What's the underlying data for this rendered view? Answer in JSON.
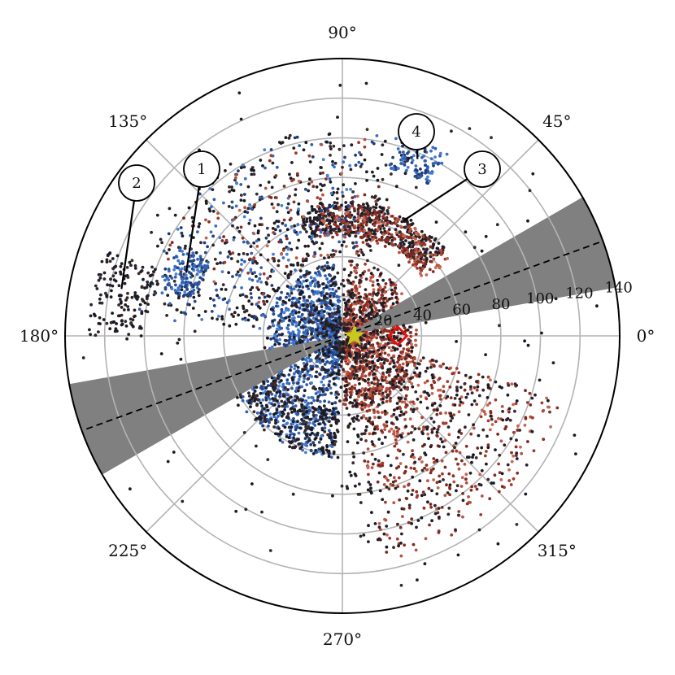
{
  "chart_data": {
    "type": "scatter",
    "title": "",
    "projection": "polar",
    "angle_tick_labels": [
      "0°",
      "45°",
      "90°",
      "135°",
      "180°",
      "225°",
      "270°",
      "315°"
    ],
    "angle_ticks_deg": [
      0,
      45,
      90,
      135,
      180,
      225,
      270,
      315
    ],
    "radial_tick_labels": [
      "20",
      "40",
      "60",
      "80",
      "100",
      "120",
      "140"
    ],
    "radial_ticks": [
      20,
      40,
      60,
      80,
      100,
      120,
      140
    ],
    "rlim": [
      0,
      140
    ],
    "grid": true,
    "shaded_wedges_deg": [
      [
        10,
        30
      ],
      [
        190,
        210
      ]
    ],
    "dashed_line_deg": [
      20,
      200
    ],
    "colors": {
      "blue": "#2f5fb0",
      "red": "#a23b2c",
      "dark": "#1d1d24",
      "wedge": "#808080",
      "star": "#c8c81e",
      "diamond": "#e01010"
    },
    "markers": [
      {
        "kind": "star",
        "angle_deg": 0,
        "r": 6
      },
      {
        "kind": "diamond",
        "angle_deg": 0,
        "r": 28
      }
    ],
    "structures": [
      {
        "label": "1",
        "angle_deg": 158,
        "r": 85,
        "color": "blue"
      },
      {
        "label": "2",
        "angle_deg": 168,
        "r": 114,
        "color": "dark"
      },
      {
        "label": "3",
        "angle_deg": 62,
        "r": 66,
        "color": "dark"
      },
      {
        "label": "4",
        "angle_deg": 67,
        "r": 97,
        "color": "blue"
      }
    ],
    "clusters": [
      {
        "name": "core-blue",
        "color": "blue",
        "angle_range": [
          95,
          265
        ],
        "r_range": [
          3,
          38
        ],
        "count": 900
      },
      {
        "name": "core-red",
        "color": "red",
        "angle_range": [
          -90,
          85
        ],
        "r_range": [
          3,
          38
        ],
        "count": 900
      },
      {
        "name": "core-dark",
        "color": "dark",
        "angle_range": [
          0,
          360
        ],
        "r_range": [
          3,
          38
        ],
        "count": 600
      },
      {
        "name": "ring-dark",
        "color": "dark",
        "angle_range": [
          40,
          110
        ],
        "r_range": [
          52,
          68
        ],
        "count": 420
      },
      {
        "name": "ring-red",
        "color": "red",
        "angle_range": [
          35,
          100
        ],
        "r_range": [
          50,
          66
        ],
        "count": 260
      },
      {
        "name": "arc-blue",
        "color": "blue",
        "angle_range": [
          200,
          265
        ],
        "r_range": [
          38,
          62
        ],
        "count": 320
      },
      {
        "name": "arc-dark",
        "color": "dark",
        "angle_range": [
          200,
          268
        ],
        "r_range": [
          38,
          62
        ],
        "count": 300
      },
      {
        "name": "lower-red",
        "color": "red",
        "angle_range": [
          280,
          345
        ],
        "r_range": [
          30,
          115
        ],
        "count": 480
      },
      {
        "name": "lower-dark",
        "color": "dark",
        "angle_range": [
          270,
          345
        ],
        "r_range": [
          30,
          110
        ],
        "count": 300
      },
      {
        "name": "upper-scatter-dark",
        "color": "dark",
        "angle_range": [
          70,
          175
        ],
        "r_range": [
          40,
          105
        ],
        "count": 380
      },
      {
        "name": "upper-scatter-blue",
        "color": "blue",
        "angle_range": [
          80,
          175
        ],
        "r_range": [
          40,
          105
        ],
        "count": 220
      },
      {
        "name": "upper-scatter-red",
        "color": "red",
        "angle_range": [
          70,
          160
        ],
        "r_range": [
          40,
          100
        ],
        "count": 120
      },
      {
        "name": "struct-1",
        "color": "blue",
        "angle_range": [
          150,
          166
        ],
        "r_range": [
          76,
          94
        ],
        "count": 140
      },
      {
        "name": "struct-2",
        "color": "dark",
        "angle_range": [
          160,
          180
        ],
        "r_range": [
          100,
          128
        ],
        "count": 150
      },
      {
        "name": "struct-4",
        "color": "blue",
        "angle_range": [
          60,
          75
        ],
        "r_range": [
          88,
          106
        ],
        "count": 110
      },
      {
        "name": "sparse-all",
        "color": "dark",
        "angle_range": [
          0,
          360
        ],
        "r_range": [
          20,
          135
        ],
        "count": 180
      }
    ]
  },
  "callouts": [
    {
      "label": "1"
    },
    {
      "label": "2"
    },
    {
      "label": "3"
    },
    {
      "label": "4"
    }
  ]
}
